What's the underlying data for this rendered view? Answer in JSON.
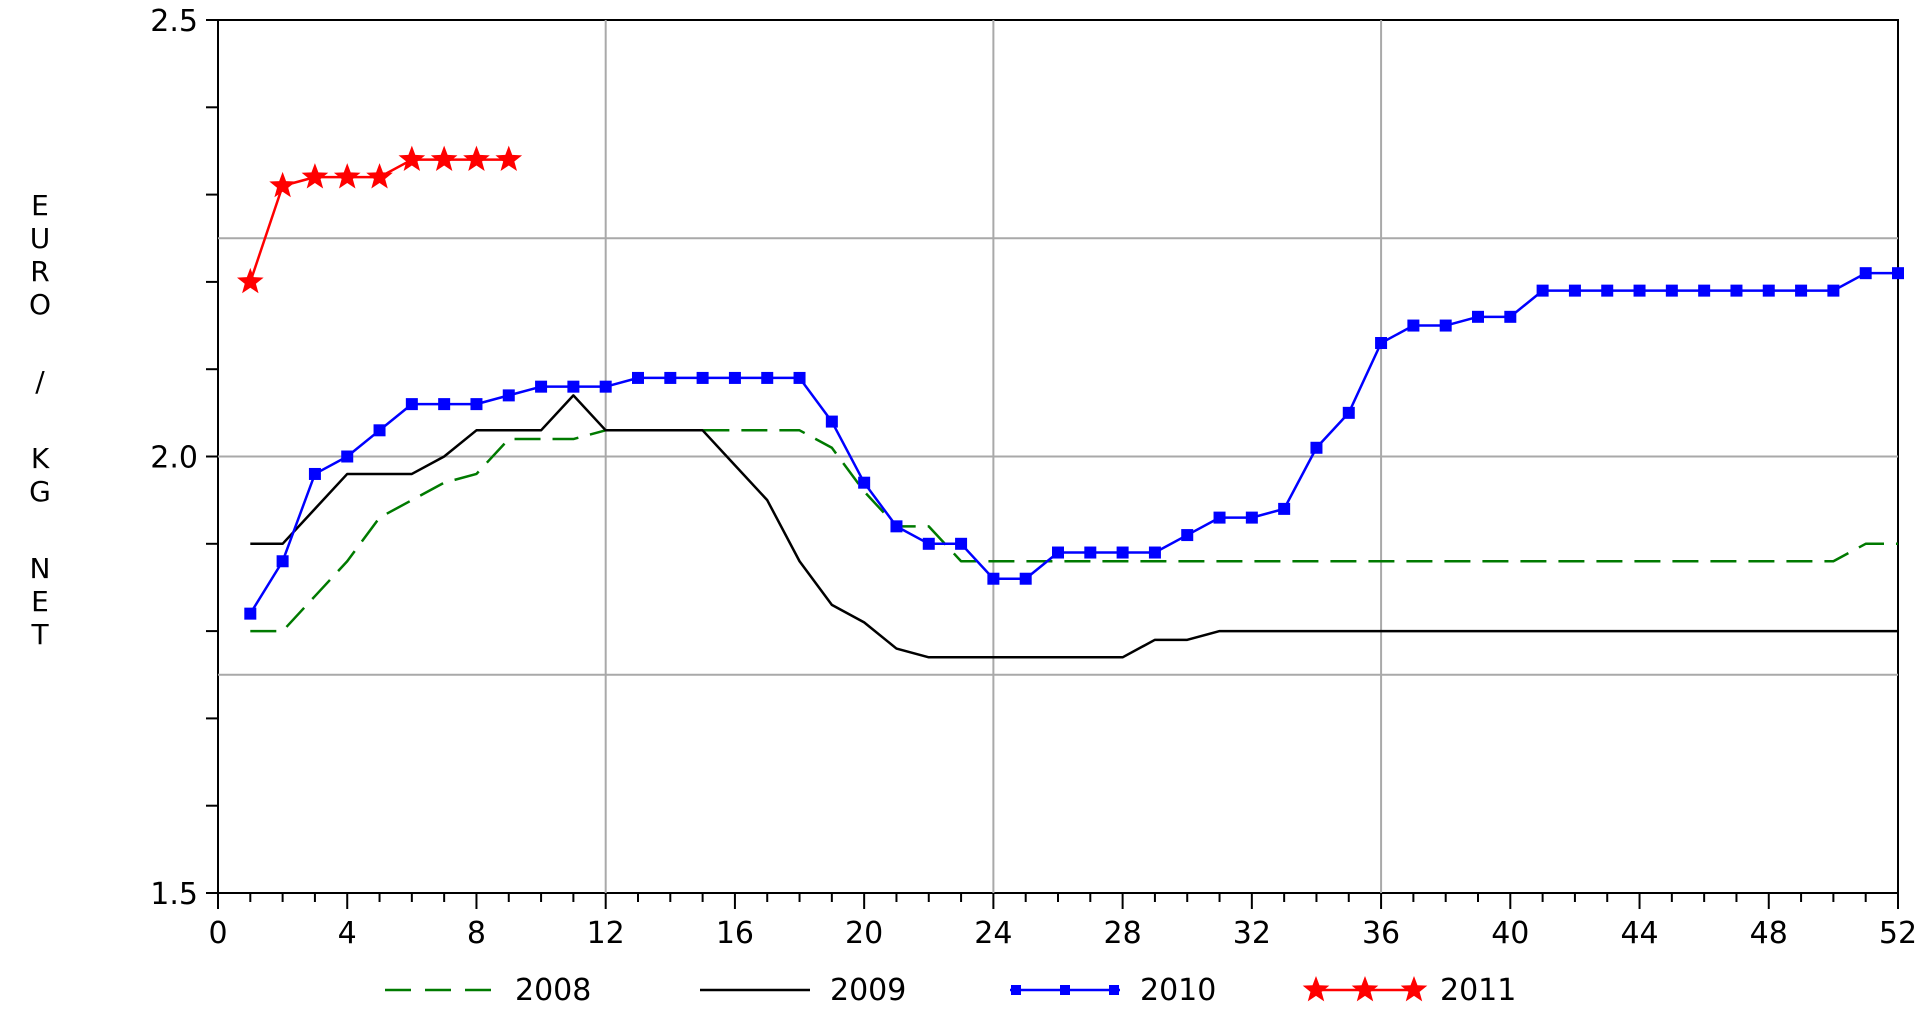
{
  "chart_data": {
    "type": "line",
    "title": "",
    "xlabel": "",
    "ylabel": "EURO / KG NET",
    "xlim": [
      0,
      52
    ],
    "ylim": [
      1.5,
      2.5
    ],
    "x_ticks": [
      0,
      4,
      8,
      12,
      16,
      20,
      24,
      28,
      32,
      36,
      40,
      44,
      48,
      52
    ],
    "x_tick_labels": [
      "0",
      "4",
      "8",
      "12",
      "16",
      "20",
      "24",
      "28",
      "32",
      "36",
      "40",
      "44",
      "48",
      "52"
    ],
    "y_minor_ticks": [
      1.5,
      1.6,
      1.7,
      1.8,
      1.9,
      2.0,
      2.1,
      2.2,
      2.3,
      2.4,
      2.5
    ],
    "y_tick_labels": [
      {
        "value": 1.5,
        "label": "1.5"
      },
      {
        "value": 2.0,
        "label": "2.0"
      },
      {
        "value": 2.5,
        "label": "2.5"
      }
    ],
    "grid": true,
    "x_grid": [
      12,
      24,
      36
    ],
    "y_grid": [
      1.75,
      2.0,
      2.25
    ],
    "legend_position": "bottom",
    "series": [
      {
        "name": "2008",
        "color": "#007a00",
        "style": "dashed",
        "marker": "none",
        "x": [
          1,
          2,
          3,
          4,
          5,
          6,
          7,
          8,
          9,
          10,
          11,
          12,
          13,
          14,
          15,
          16,
          17,
          18,
          19,
          20,
          21,
          22,
          23,
          24,
          25,
          26,
          27,
          28,
          29,
          30,
          31,
          32,
          33,
          34,
          35,
          36,
          37,
          38,
          39,
          40,
          41,
          42,
          43,
          44,
          45,
          46,
          47,
          48,
          49,
          50,
          51,
          52
        ],
        "y": [
          1.8,
          1.8,
          1.84,
          1.88,
          1.93,
          1.95,
          1.97,
          1.98,
          2.02,
          2.02,
          2.02,
          2.03,
          2.03,
          2.03,
          2.03,
          2.03,
          2.03,
          2.03,
          2.01,
          1.96,
          1.92,
          1.92,
          1.88,
          1.88,
          1.88,
          1.88,
          1.88,
          1.88,
          1.88,
          1.88,
          1.88,
          1.88,
          1.88,
          1.88,
          1.88,
          1.88,
          1.88,
          1.88,
          1.88,
          1.88,
          1.88,
          1.88,
          1.88,
          1.88,
          1.88,
          1.88,
          1.88,
          1.88,
          1.88,
          1.88,
          1.9,
          1.9
        ]
      },
      {
        "name": "2009",
        "color": "#000000",
        "style": "solid",
        "marker": "none",
        "x": [
          1,
          2,
          3,
          4,
          5,
          6,
          7,
          8,
          9,
          10,
          11,
          12,
          13,
          14,
          15,
          16,
          17,
          18,
          19,
          20,
          21,
          22,
          23,
          24,
          25,
          26,
          27,
          28,
          29,
          30,
          31,
          32,
          33,
          34,
          35,
          36,
          37,
          38,
          39,
          40,
          41,
          42,
          43,
          44,
          45,
          46,
          47,
          48,
          49,
          50,
          51,
          52
        ],
        "y": [
          1.9,
          1.9,
          1.94,
          1.98,
          1.98,
          1.98,
          2.0,
          2.03,
          2.03,
          2.03,
          2.07,
          2.03,
          2.03,
          2.03,
          2.03,
          1.99,
          1.95,
          1.88,
          1.83,
          1.81,
          1.78,
          1.77,
          1.77,
          1.77,
          1.77,
          1.77,
          1.77,
          1.77,
          1.79,
          1.79,
          1.8,
          1.8,
          1.8,
          1.8,
          1.8,
          1.8,
          1.8,
          1.8,
          1.8,
          1.8,
          1.8,
          1.8,
          1.8,
          1.8,
          1.8,
          1.8,
          1.8,
          1.8,
          1.8,
          1.8,
          1.8,
          1.8
        ]
      },
      {
        "name": "2010",
        "color": "#0000ff",
        "style": "solid",
        "marker": "square",
        "x": [
          1,
          2,
          3,
          4,
          5,
          6,
          7,
          8,
          9,
          10,
          11,
          12,
          13,
          14,
          15,
          16,
          17,
          18,
          19,
          20,
          21,
          22,
          23,
          24,
          25,
          26,
          27,
          28,
          29,
          30,
          31,
          32,
          33,
          34,
          35,
          36,
          37,
          38,
          39,
          40,
          41,
          42,
          43,
          44,
          45,
          46,
          47,
          48,
          49,
          50,
          51,
          52
        ],
        "y": [
          1.82,
          1.88,
          1.98,
          2.0,
          2.03,
          2.06,
          2.06,
          2.06,
          2.07,
          2.08,
          2.08,
          2.08,
          2.09,
          2.09,
          2.09,
          2.09,
          2.09,
          2.09,
          2.04,
          1.97,
          1.92,
          1.9,
          1.9,
          1.86,
          1.86,
          1.89,
          1.89,
          1.89,
          1.89,
          1.91,
          1.93,
          1.93,
          1.94,
          2.01,
          2.05,
          2.13,
          2.15,
          2.15,
          2.16,
          2.16,
          2.19,
          2.19,
          2.19,
          2.19,
          2.19,
          2.19,
          2.19,
          2.19,
          2.19,
          2.19,
          2.21,
          2.21
        ]
      },
      {
        "name": "2011",
        "color": "#ff0000",
        "style": "solid",
        "marker": "star",
        "x": [
          1,
          2,
          3,
          4,
          5,
          6,
          7,
          8,
          9
        ],
        "y": [
          2.2,
          2.31,
          2.32,
          2.32,
          2.32,
          2.34,
          2.34,
          2.34,
          2.34
        ]
      }
    ]
  }
}
